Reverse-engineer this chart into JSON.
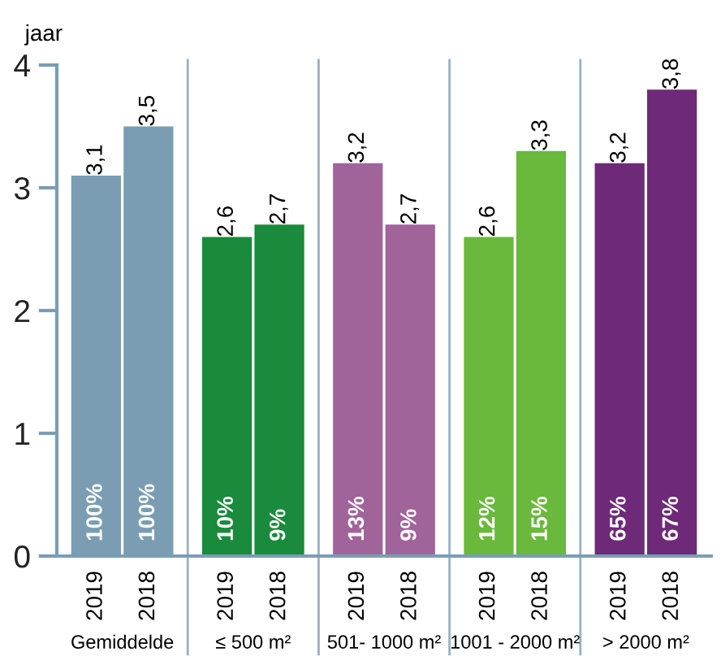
{
  "chart_data": {
    "type": "bar",
    "ylabel": "jaar",
    "categories": [
      "Gemiddelde",
      "≤ 500 m²",
      "501- 1000 m²",
      "1001 - 2000 m²",
      "> 2000 m²"
    ],
    "series": [
      {
        "name": "2019",
        "colors": [
          "#7a9db3",
          "#1a8a3c",
          "#a0649a",
          "#6ab83c",
          "#6e2a78"
        ],
        "values": [
          3.1,
          2.6,
          3.2,
          2.6,
          3.2
        ],
        "value_labels": [
          "3,1",
          "2,6",
          "3,2",
          "2,6",
          "3,2"
        ]
      },
      {
        "name": "2018",
        "colors": [
          "#7a9db3",
          "#1a8a3c",
          "#a0649a",
          "#6ab83c",
          "#6e2a78"
        ],
        "values": [
          3.5,
          2.7,
          2.7,
          3.3,
          3.8
        ],
        "value_labels": [
          "3,5",
          "2,7",
          "2,7",
          "3,3",
          "3,8"
        ]
      }
    ],
    "ylim": [
      0,
      4
    ],
    "yticks": [
      0,
      1,
      2,
      3,
      4
    ],
    "grid": false,
    "annotations": [
      "100%",
      "10%",
      "13%",
      "12%",
      "65%",
      "100%",
      "9%",
      "9%",
      "15%",
      "67%"
    ]
  }
}
